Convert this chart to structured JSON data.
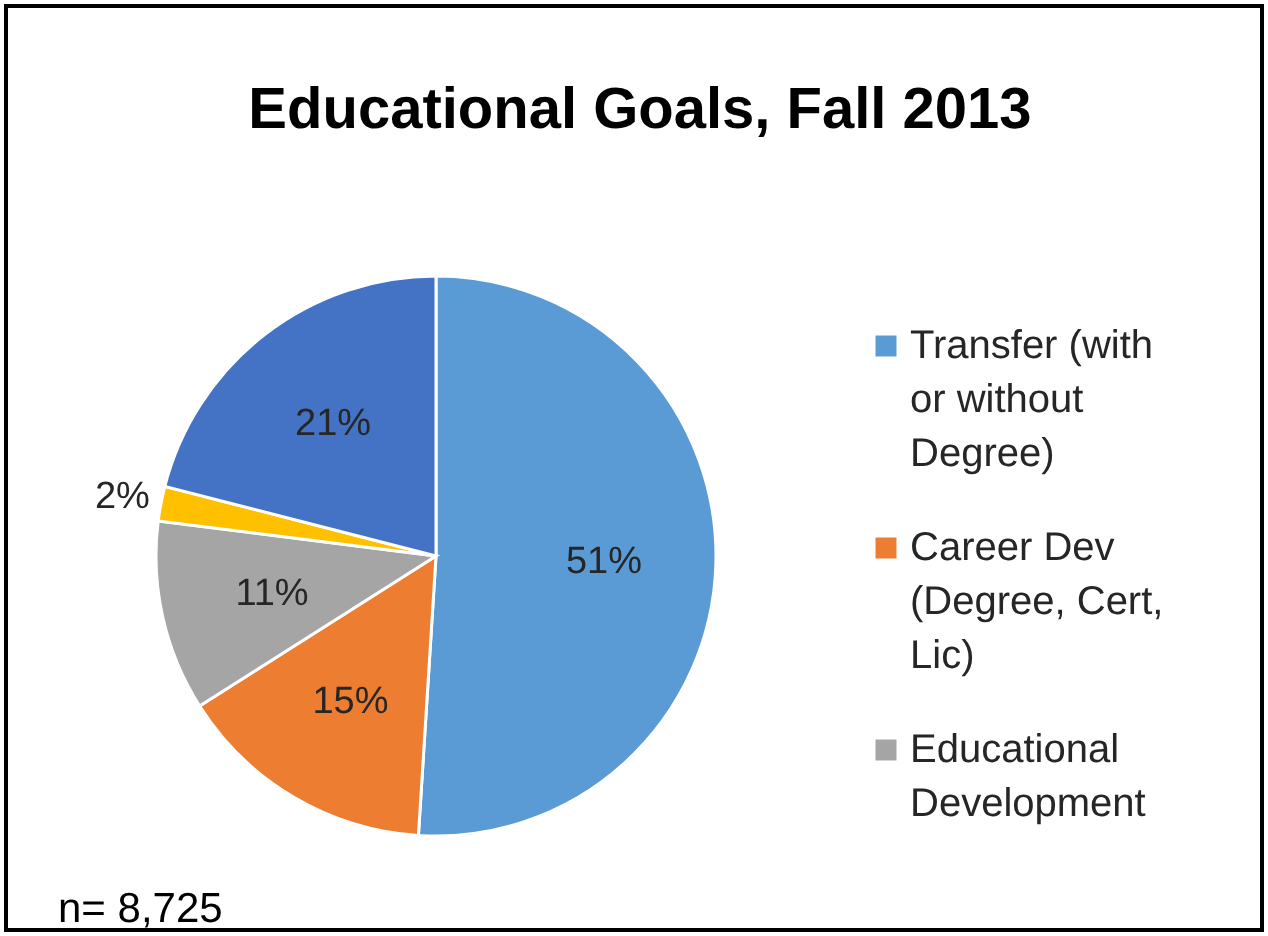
{
  "chart_data": {
    "type": "pie",
    "title": "Educational Goals, Fall 2013",
    "categories": [
      "Transfer (with or without Degree)",
      "Career Dev (Degree, Cert, Lic)",
      "Educational Development",
      null,
      null
    ],
    "values": [
      51,
      15,
      11,
      2,
      21
    ],
    "colors": [
      "#5b9bd5",
      "#ed7d31",
      "#a5a5a5",
      "#ffc000",
      "#4472c4"
    ],
    "value_labels": [
      "51%",
      "15%",
      "11%",
      "2%",
      "21%"
    ],
    "legend": "right",
    "annotations": [
      "n= 8,725"
    ]
  }
}
